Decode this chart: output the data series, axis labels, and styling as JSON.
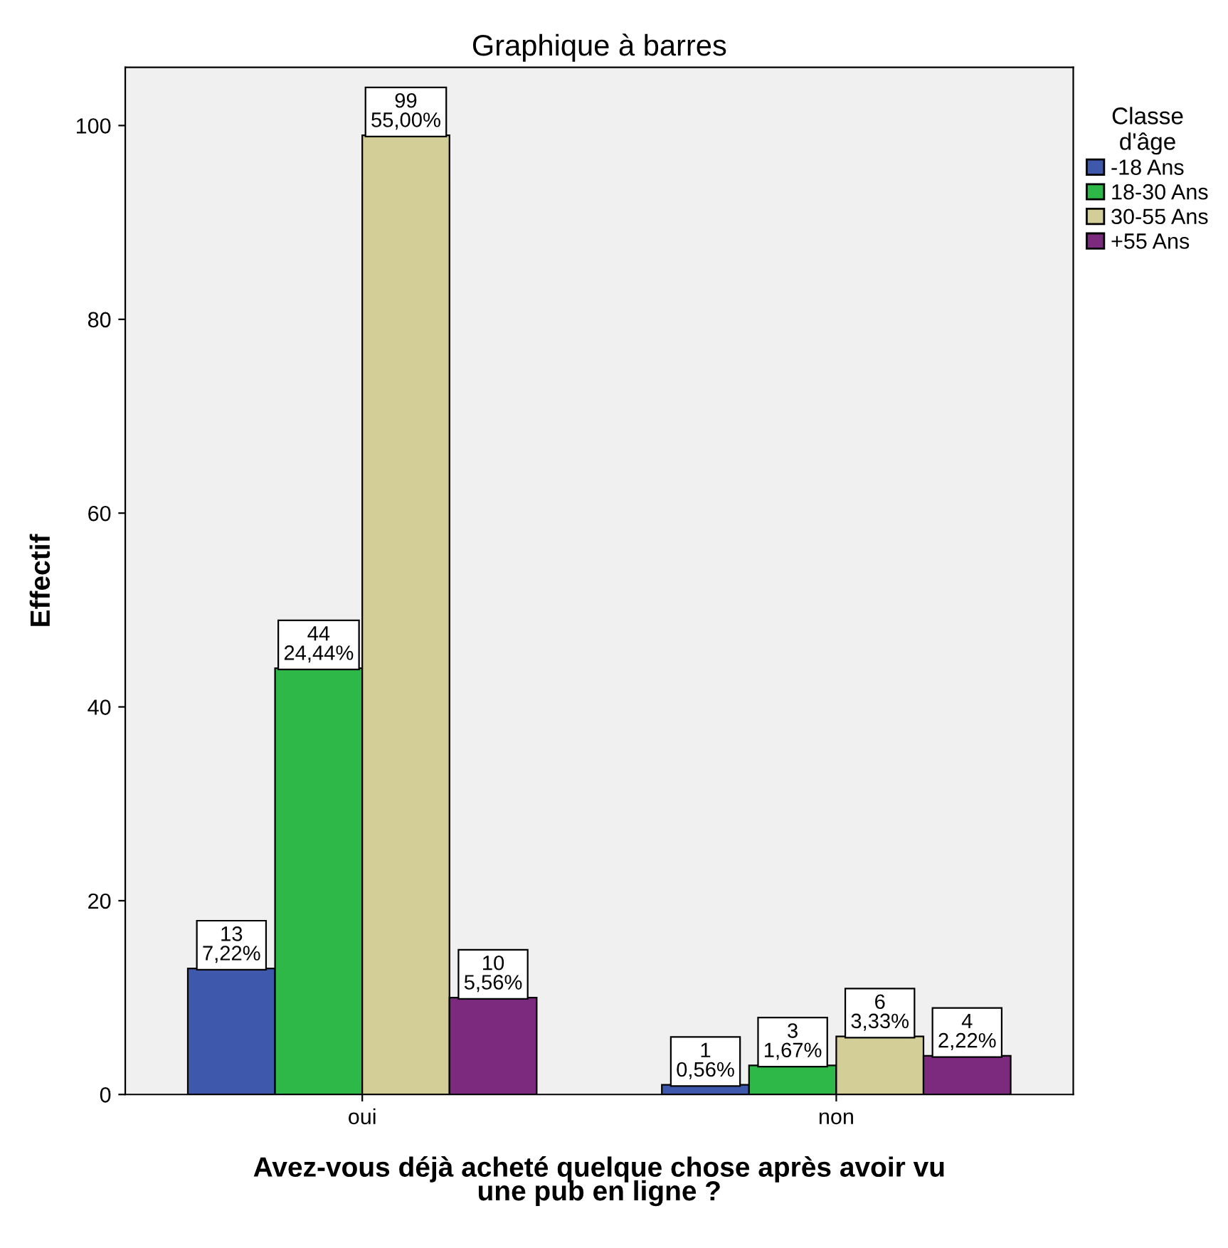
{
  "chart_data": {
    "type": "bar",
    "title": "Graphique à barres",
    "xlabel": "Avez-vous déjà acheté quelque chose après avoir vu\nune pub en ligne ?",
    "ylabel": "Effectif",
    "legend_title": "Classe\nd'âge",
    "legend": "right",
    "grid": false,
    "categories": [
      "oui",
      "non"
    ],
    "ylim": [
      0,
      106
    ],
    "yticks": [
      0,
      20,
      40,
      60,
      80,
      100
    ],
    "series": [
      {
        "name": "-18 Ans",
        "color": "#3e58ac",
        "values": [
          13,
          1
        ],
        "value_labels": [
          "13\n7,22%",
          "1\n0,56%"
        ]
      },
      {
        "name": "18-30 Ans",
        "color": "#2eb848",
        "values": [
          44,
          3
        ],
        "value_labels": [
          "44\n24,44%",
          "3\n1,67%"
        ]
      },
      {
        "name": "30-55 Ans",
        "color": "#d3ce97",
        "values": [
          99,
          6
        ],
        "value_labels": [
          "99\n55,00%",
          "6\n3,33%"
        ]
      },
      {
        "name": "+55 Ans",
        "color": "#7b2a7e",
        "values": [
          10,
          4
        ],
        "value_labels": [
          "10\n5,56%",
          "4\n2,22%"
        ]
      }
    ]
  }
}
